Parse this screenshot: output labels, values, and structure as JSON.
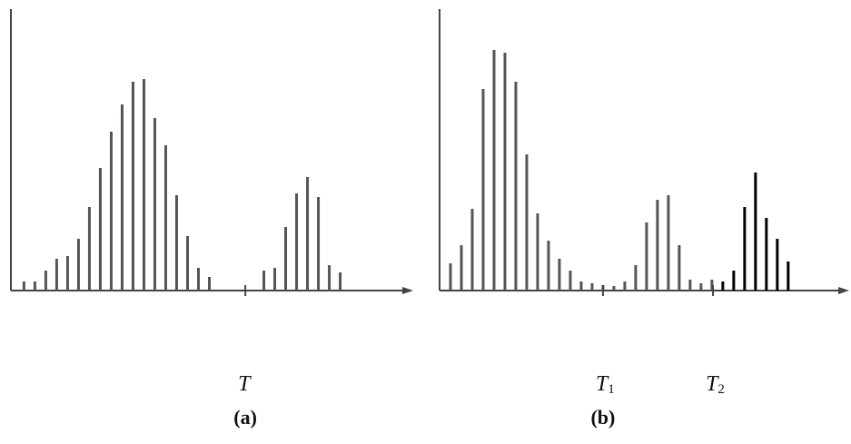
{
  "chart_data": [
    {
      "type": "bar",
      "caption": "(a)",
      "x": [
        0,
        1,
        2,
        3,
        4,
        5,
        6,
        7,
        8,
        9,
        10,
        11,
        12,
        13,
        14,
        15,
        16,
        17,
        22,
        23,
        24,
        25,
        26,
        27,
        28,
        29
      ],
      "series": [
        {
          "color": "#555555",
          "values": [
            10,
            10,
            22,
            35,
            38,
            57,
            92,
            135,
            175,
            205,
            230,
            233,
            190,
            160,
            105,
            60,
            25,
            15,
            22,
            25,
            70,
            107,
            125,
            103,
            28,
            20
          ]
        }
      ],
      "xlim": [
        -1.2,
        35.7
      ],
      "ylim": [
        0,
        310
      ],
      "thresholds": [
        {
          "x": 20.3,
          "label": "T"
        }
      ]
    },
    {
      "type": "bar",
      "caption": "(b)",
      "x": [
        0,
        1,
        2,
        3,
        4,
        5,
        6,
        7,
        8,
        9,
        10,
        11,
        12,
        13,
        14,
        15,
        16,
        17,
        18,
        19,
        20,
        21,
        22,
        23,
        24,
        25,
        26,
        27,
        28,
        29,
        30,
        31
      ],
      "series": [
        {
          "color": "#555555",
          "values": [
            30,
            50,
            90,
            222,
            265,
            262,
            230,
            150,
            85,
            55,
            35,
            22,
            10,
            8,
            6,
            5,
            10,
            28,
            75,
            100,
            105,
            50,
            12,
            8,
            12,
            null,
            null,
            null,
            null,
            null,
            null,
            null
          ]
        },
        {
          "color": "#000000",
          "values": [
            null,
            null,
            null,
            null,
            null,
            null,
            null,
            null,
            null,
            null,
            null,
            null,
            null,
            null,
            null,
            null,
            null,
            null,
            null,
            null,
            null,
            null,
            null,
            null,
            null,
            10,
            22,
            92,
            130,
            80,
            57,
            32
          ]
        }
      ],
      "xlim": [
        -1,
        36.6
      ],
      "ylim": [
        0,
        310
      ],
      "thresholds": [
        {
          "x": 14,
          "label": "T",
          "sub": "1"
        },
        {
          "x": 24.1,
          "label": "T",
          "sub": "2"
        }
      ]
    }
  ]
}
